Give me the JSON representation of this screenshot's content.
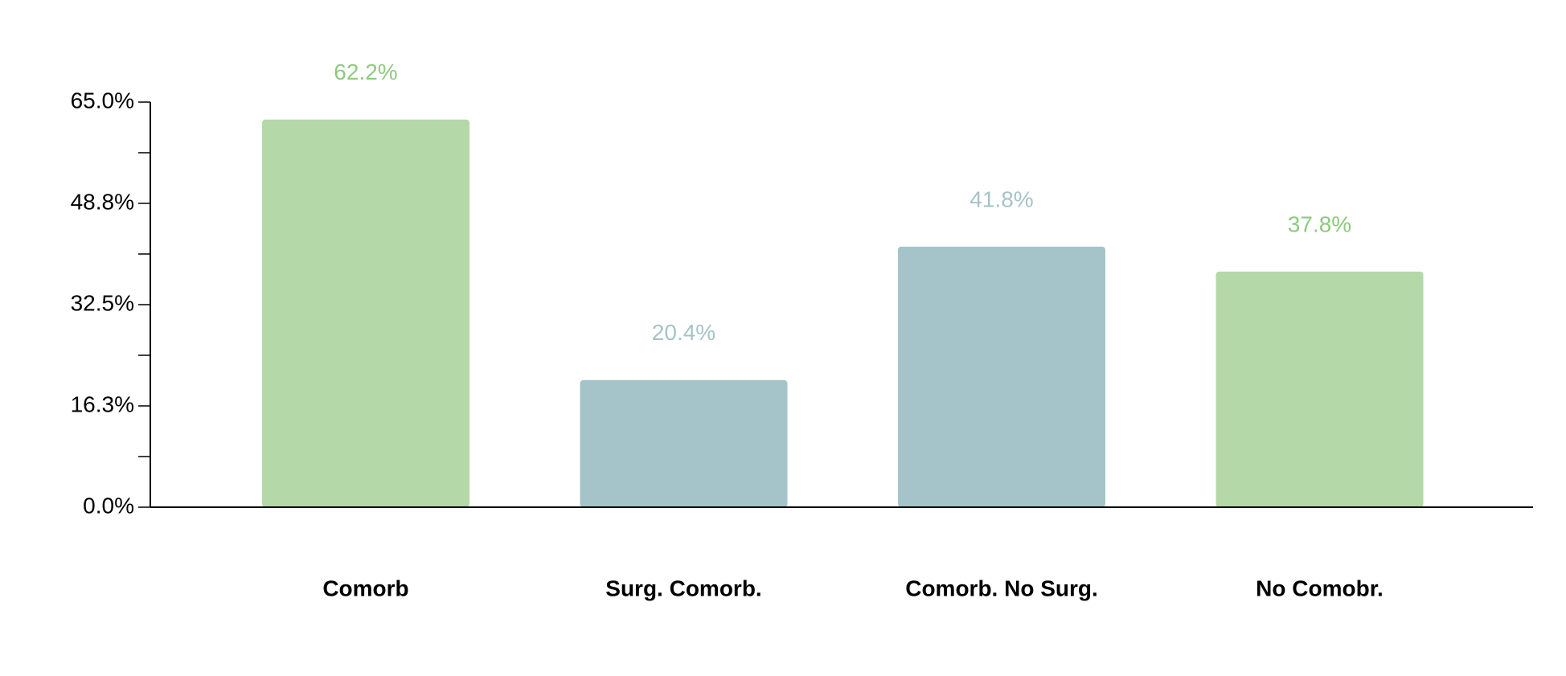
{
  "chart_data": {
    "type": "bar",
    "categories": [
      "Comorb",
      "Surg. Comorb.",
      "Comorb. No Surg.",
      "No Comobr."
    ],
    "values": [
      62.2,
      20.4,
      41.8,
      37.8
    ],
    "value_labels": [
      "62.2%",
      "20.4%",
      "41.8%",
      "37.8%"
    ],
    "colors": [
      "#b5d8a8",
      "#a4c4c9",
      "#a4c4c9",
      "#b5d8a8"
    ],
    "label_colors": [
      "#8fc97e",
      "#a4c4c9",
      "#a4c4c9",
      "#8fc97e"
    ],
    "ylim": [
      0,
      65
    ],
    "yticks": [
      {
        "value": 0,
        "label": "0.0%"
      },
      {
        "value": 16.25,
        "label": "16.3%"
      },
      {
        "value": 32.5,
        "label": "32.5%"
      },
      {
        "value": 48.75,
        "label": "48.8%"
      },
      {
        "value": 65,
        "label": "65.0%"
      }
    ],
    "grid": false
  }
}
